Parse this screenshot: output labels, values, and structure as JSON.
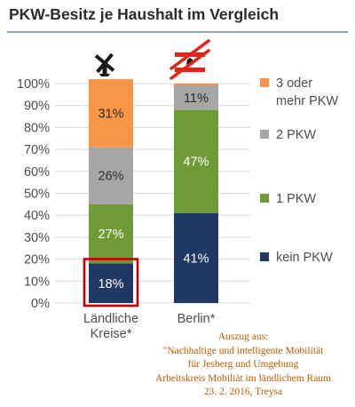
{
  "chart_data": {
    "type": "bar",
    "stacked": true,
    "percent_labels": true,
    "title": "PKW-Besitz je Haushalt im Vergleich",
    "categories": [
      "Ländliche Kreise*",
      "Berlin*"
    ],
    "category_lines": [
      [
        "Ländliche",
        "Kreise*"
      ],
      [
        "Berlin*"
      ]
    ],
    "ylim": [
      0,
      100
    ],
    "yticks": [
      "0%",
      "10%",
      "20%",
      "30%",
      "40%",
      "50%",
      "60%",
      "70%",
      "80%",
      "90%",
      "100%"
    ],
    "grid": true,
    "legend_position": "right",
    "highlight": {
      "category": "Ländliche Kreise*",
      "series": "kein PKW",
      "color": "#c00000"
    },
    "series": [
      {
        "name": "kein PKW",
        "legend_lines": [
          "kein PKW"
        ],
        "color": "#1f3864",
        "values": [
          18,
          41
        ]
      },
      {
        "name": "1 PKW",
        "legend_lines": [
          "1 PKW"
        ],
        "color": "#6f9a36",
        "values": [
          27,
          47
        ]
      },
      {
        "name": "2 PKW",
        "legend_lines": [
          "2 PKW"
        ],
        "color": "#a6a6a6",
        "values": [
          26,
          11
        ]
      },
      {
        "name": "3 oder mehr PKW",
        "legend_lines": [
          "3 oder",
          "mehr PKW"
        ],
        "color": "#f79646",
        "values": [
          31,
          1
        ]
      }
    ],
    "icons": [
      {
        "category": "Ländliche Kreise*",
        "icon": "windmill-icon"
      },
      {
        "category": "Berlin*",
        "icon": "berlin-flag-crossed-icon"
      }
    ]
  },
  "colors": {
    "title": "#2b2b2b",
    "title_rule": "#4a6fa5",
    "axis_text": "#4d4d4d",
    "gridline": "#d9d9d9",
    "note_text": "#c25a00",
    "bar_label_light": "#ffffff",
    "bar_label_dark": "#2b2b2b"
  },
  "note": {
    "lines": [
      "Auszug aus:",
      "\"Nachhaltige und intelligente Mobilität",
      "für Jesberg und Umgebung",
      "Arbeitskreis Mobiliät im ländlichem Raum",
      "23. 2. 2016, Treysa"
    ]
  }
}
